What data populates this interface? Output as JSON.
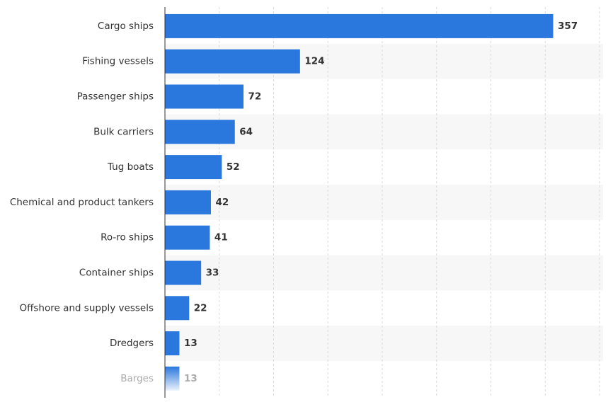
{
  "chart_data": {
    "type": "bar",
    "orientation": "horizontal",
    "title": "",
    "xlabel": "",
    "ylabel": "",
    "categories": [
      "Cargo ships",
      "Fishing vessels",
      "Passenger ships",
      "Bulk carriers",
      "Tug boats",
      "Chemical and product tankers",
      "Ro-ro ships",
      "Container ships",
      "Offshore and supply vessels",
      "Dredgers",
      "Barges"
    ],
    "values": [
      357,
      124,
      72,
      64,
      52,
      42,
      41,
      33,
      22,
      13,
      13
    ],
    "xlim": [
      0,
      400
    ],
    "grid": true,
    "bar_color": "#2a77dd",
    "band_color": "#f7f7f7",
    "label_color": "#333333"
  }
}
